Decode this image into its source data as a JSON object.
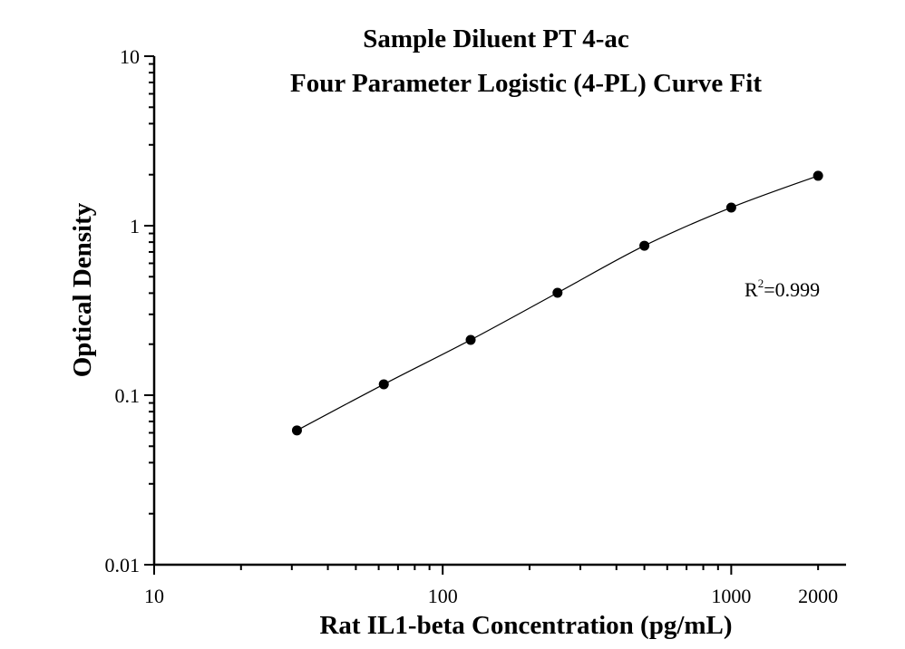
{
  "chart_data": {
    "type": "scatter",
    "title": "Sample Diluent PT 4-ac",
    "subtitle": "Four Parameter Logistic (4-PL) Curve Fit",
    "xlabel": "Rat IL1-beta Concentration (pg/mL)",
    "ylabel": "Optical Density",
    "x_scale": "log",
    "y_scale": "log",
    "xlim": [
      10,
      2500
    ],
    "ylim": [
      0.01,
      10
    ],
    "x_ticks": [
      "10",
      "100",
      "1000",
      "2000"
    ],
    "y_ticks": [
      "0.01",
      "0.1",
      "1",
      "10"
    ],
    "grid": false,
    "annotation": {
      "base": "R",
      "sup": "2",
      "rest": "=0.999"
    },
    "series": [
      {
        "x": [
          31.25,
          62.5,
          125,
          250,
          500,
          1000,
          2000
        ],
        "y": [
          0.062,
          0.116,
          0.212,
          0.402,
          0.762,
          1.28,
          1.97
        ],
        "fit": "4-PL curve",
        "color": "#000000"
      }
    ]
  }
}
